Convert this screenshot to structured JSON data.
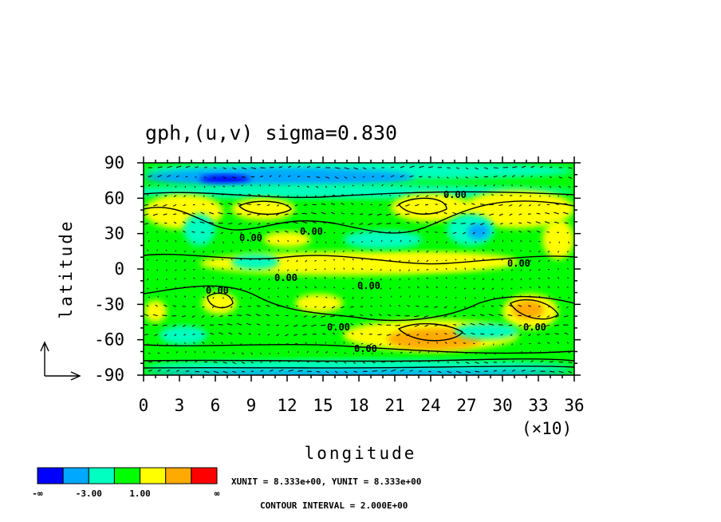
{
  "chart_data": {
    "type": "heatmap",
    "title": "gph,(u,v) sigma=0.830",
    "xlabel": "longitude",
    "ylabel": "latitude",
    "x_multiplier": "(×10)",
    "xlim": [
      0,
      36
    ],
    "ylim": [
      -90,
      90
    ],
    "x_ticks": [
      "0",
      "3",
      "6",
      "9",
      "12",
      "15",
      "18",
      "21",
      "24",
      "27",
      "30",
      "33",
      "36"
    ],
    "y_ticks": [
      "90",
      "60",
      "30",
      "0",
      "-30",
      "-60",
      "-90"
    ],
    "color_levels": [
      "#0000ff",
      "#00a8ff",
      "#00ffc0",
      "#00ff00",
      "#ffff00",
      "#ffaa00",
      "#ff0000"
    ],
    "colorbar_labels": [
      "-∞",
      "-3.00",
      "1.00",
      "∞"
    ],
    "contour_labels": [
      "0.00",
      "0.00",
      "0.00",
      "0.00",
      "0.00",
      "0.00",
      "0.00",
      "0.00",
      "0.00",
      "0.00"
    ],
    "grid": false,
    "vector_field": true
  },
  "units_text": "XUNIT = 8.333e+00, YUNIT = 8.333e+00",
  "contour_text": "CONTOUR INTERVAL = 2.000E+00"
}
